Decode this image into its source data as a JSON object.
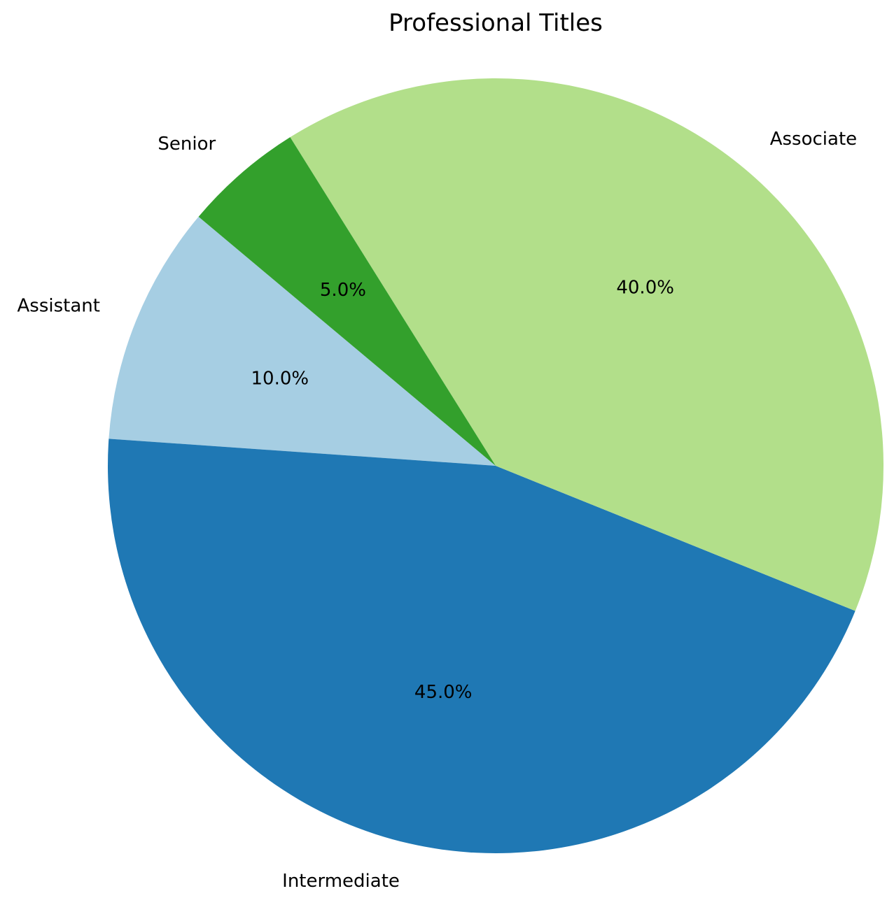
{
  "chart_data": {
    "type": "pie",
    "title": "Professional Titles",
    "start_angle_deg": 140,
    "direction": "counterclockwise",
    "slices": [
      {
        "label": "Assistant",
        "value": 10.0,
        "pct_label": "10.0%",
        "color": "#a6cee3"
      },
      {
        "label": "Intermediate",
        "value": 45.0,
        "pct_label": "45.0%",
        "color": "#1f78b4"
      },
      {
        "label": "Associate",
        "value": 40.0,
        "pct_label": "40.0%",
        "color": "#b2df8a"
      },
      {
        "label": "Senior",
        "value": 5.0,
        "pct_label": "5.0%",
        "color": "#33a02c"
      }
    ]
  }
}
